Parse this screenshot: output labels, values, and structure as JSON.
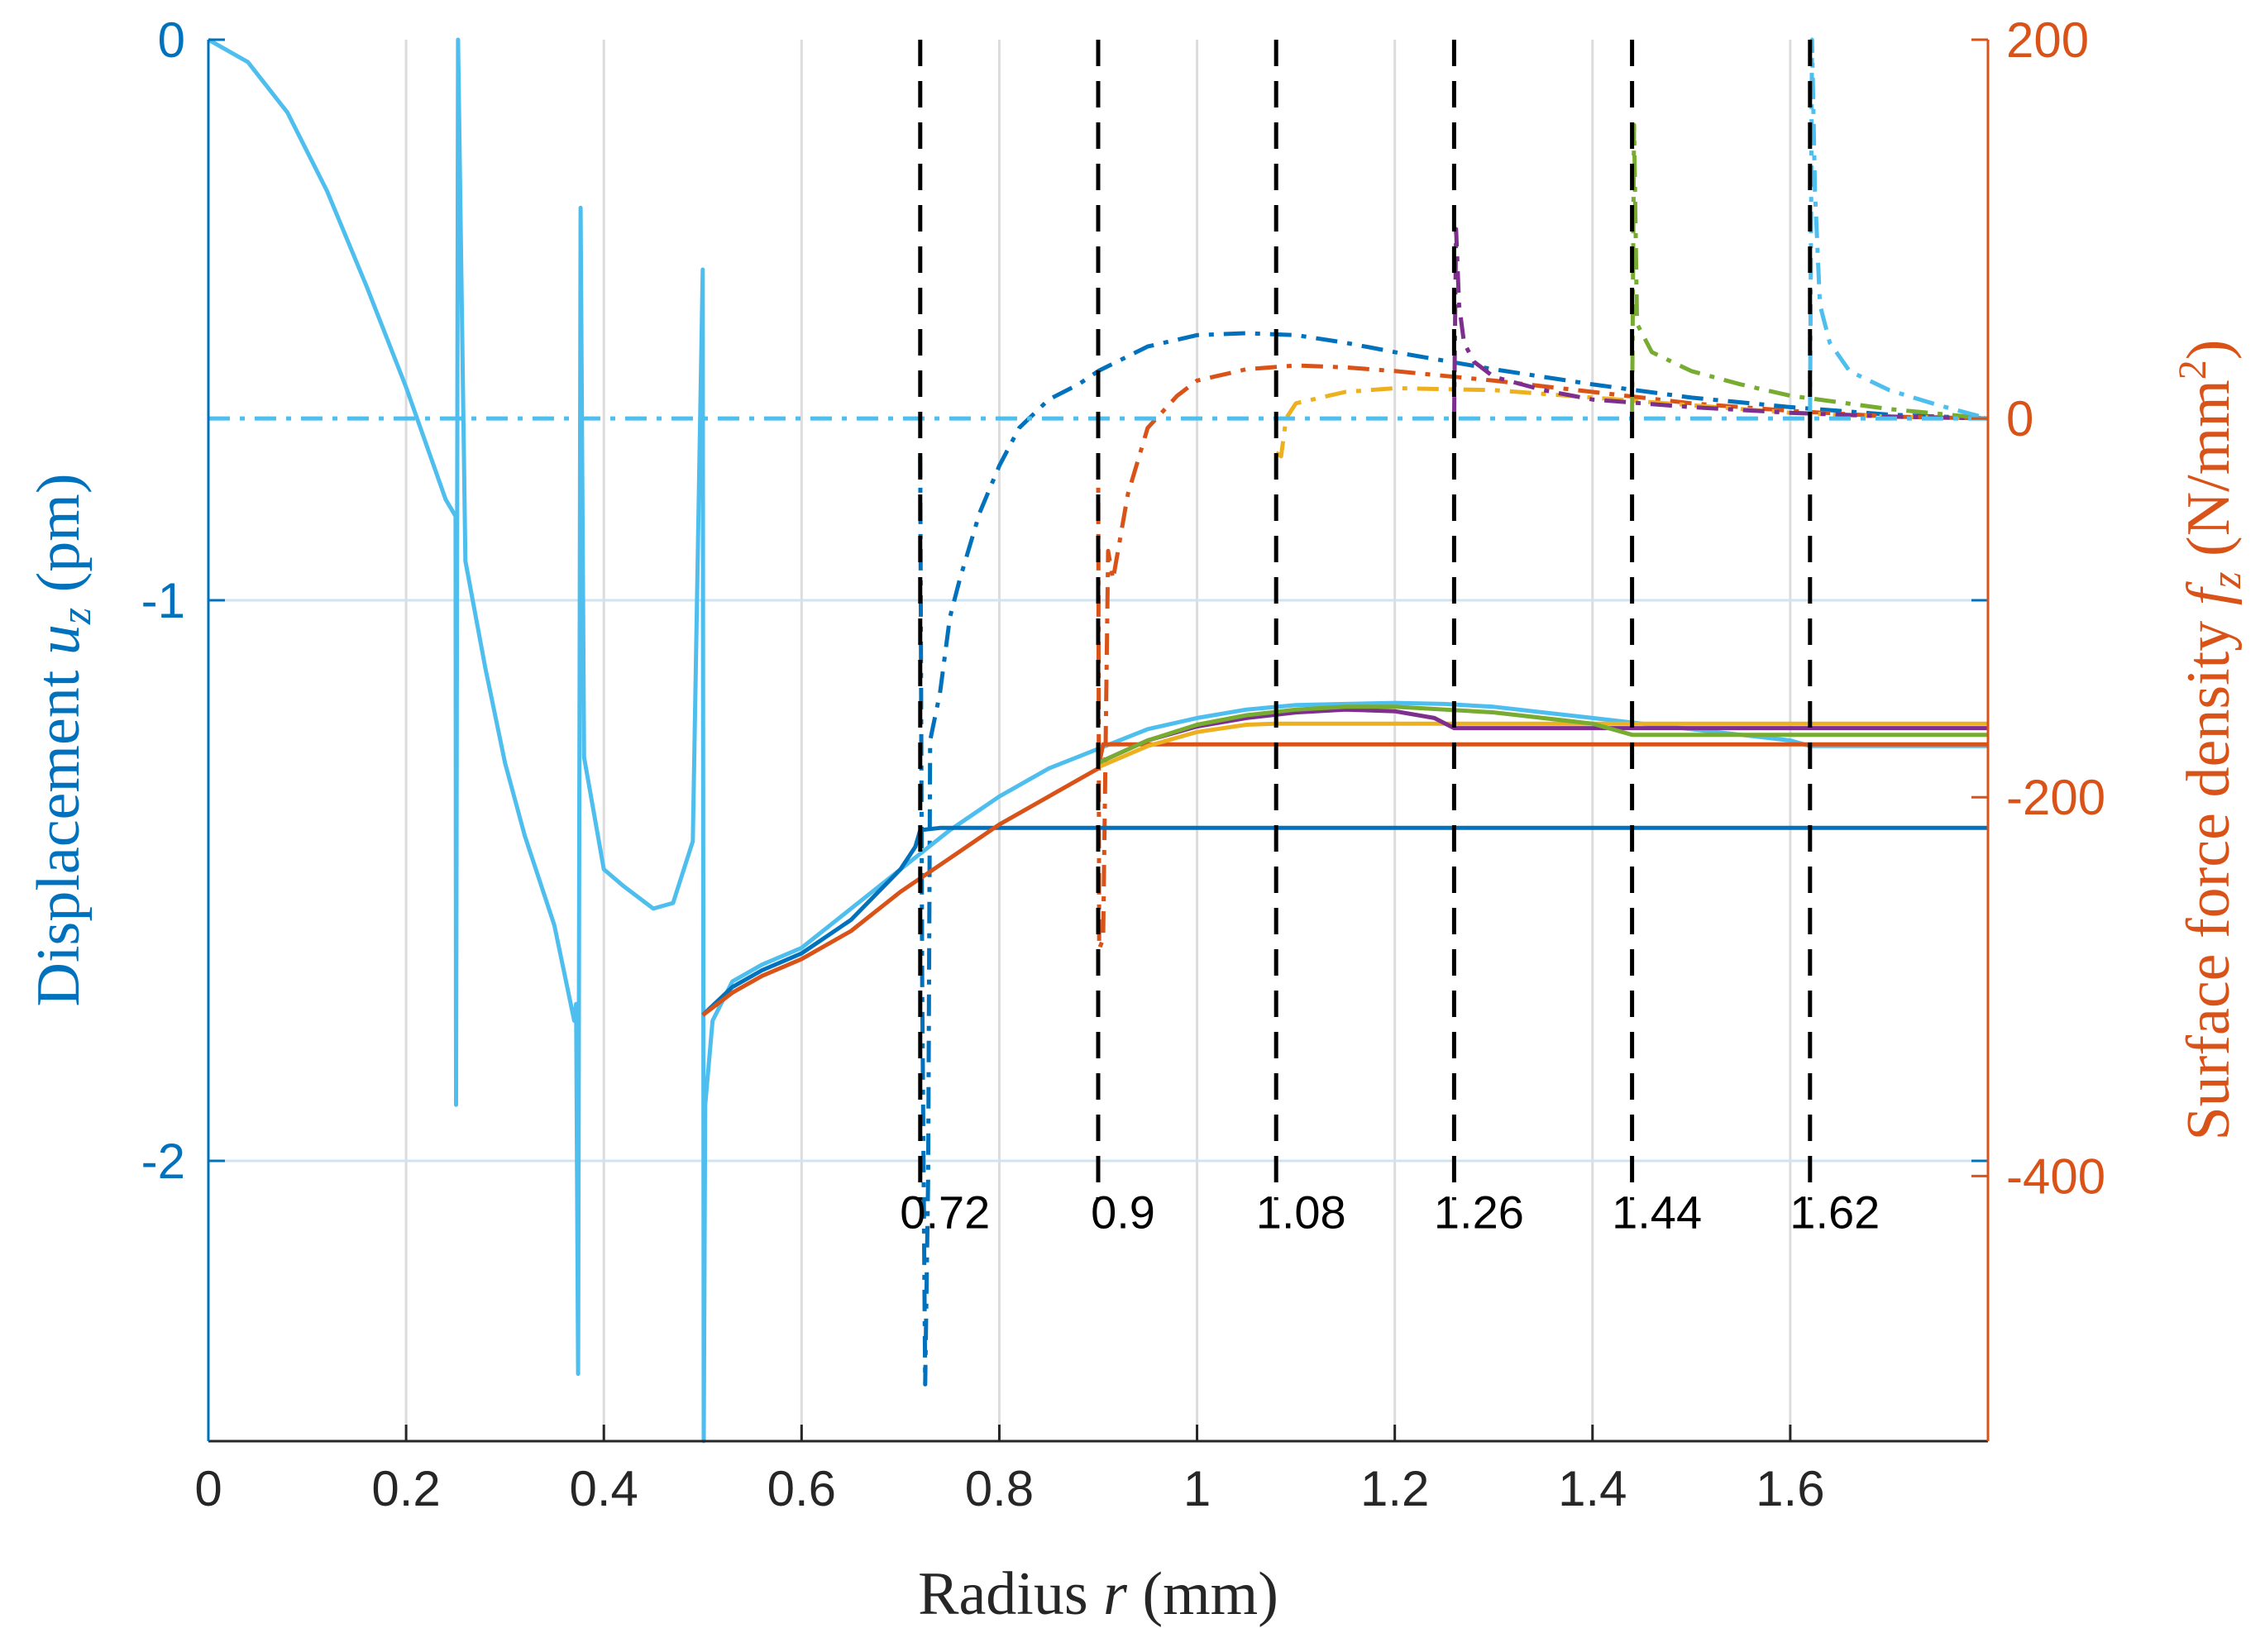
{
  "chart_data": {
    "type": "line",
    "xlabel": {
      "pre": "Radius ",
      "var": "r",
      "post": " (mm)"
    },
    "ylabel_left": {
      "pre": "Displacement ",
      "var": "u",
      "sub": "z",
      "post": " (pm)"
    },
    "ylabel_right": {
      "pre": "Surface force density ",
      "var": "f",
      "sub": "z",
      "post": " (N/mm",
      "sup": "2",
      "post2": ")"
    },
    "xlim": [
      0,
      1.8
    ],
    "ylim_left": [
      -2.5,
      0
    ],
    "ylim_right": [
      -540,
      200
    ],
    "xticks": [
      "0",
      "0.2",
      "0.4",
      "0.6",
      "0.8",
      "1",
      "1.2",
      "1.4",
      "1.6"
    ],
    "yticks_left": [
      "0",
      "-1",
      "-2"
    ],
    "yticks_right": [
      "200",
      "0",
      "-200",
      "-400"
    ],
    "grid": true,
    "colors": {
      "left_axis": "#0072BD",
      "right_axis": "#D95319",
      "light_blue": "#4DBEEE",
      "orange": "#D95319",
      "yellow": "#EDB120",
      "purple": "#7E2F8E",
      "green": "#77AC30"
    },
    "annotations": [
      "0.72",
      "0.9",
      "1.08",
      "1.26",
      "1.44",
      "1.62"
    ],
    "annotation_x": [
      0.72,
      0.9,
      1.08,
      1.26,
      1.44,
      1.62
    ],
    "series": [
      {
        "color": "#4DBEEE",
        "style": "solid",
        "axis": "left",
        "x": [
          0,
          0.04,
          0.08,
          0.12,
          0.16,
          0.2,
          0.24,
          0.25,
          0.2505,
          0.2525,
          0.26,
          0.28,
          0.3,
          0.32,
          0.35,
          0.37,
          0.372,
          0.374,
          0.3765,
          0.38,
          0.4,
          0.42,
          0.45,
          0.47,
          0.49,
          0.5,
          0.501,
          0.5025,
          0.51,
          0.53,
          0.56,
          0.6,
          0.65,
          0.7,
          0.75,
          0.8,
          0.85,
          0.9,
          0.95,
          1.0,
          1.05,
          1.1,
          1.15,
          1.2,
          1.25,
          1.3,
          1.35,
          1.4,
          1.45,
          1.5,
          1.55,
          1.6,
          1.62,
          1.7,
          1.8
        ],
        "y": [
          0,
          -0.04,
          -0.13,
          -0.27,
          -0.44,
          -0.62,
          -0.82,
          -0.85,
          -1.9,
          0,
          -0.93,
          -1.12,
          -1.29,
          -1.42,
          -1.58,
          -1.75,
          -1.72,
          -2.38,
          -0.3,
          -1.28,
          -1.48,
          -1.51,
          -1.55,
          -1.54,
          -1.43,
          -0.41,
          -2.5,
          -1.9,
          -1.75,
          -1.68,
          -1.65,
          -1.62,
          -1.55,
          -1.48,
          -1.41,
          -1.35,
          -1.3,
          -1.265,
          -1.23,
          -1.21,
          -1.195,
          -1.187,
          -1.185,
          -1.183,
          -1.185,
          -1.19,
          -1.2,
          -1.21,
          -1.22,
          -1.23,
          -1.24,
          -1.25,
          -1.26,
          -1.26,
          -1.26
        ]
      },
      {
        "color": "#0072BD",
        "style": "solid",
        "axis": "left",
        "x": [
          0.5,
          0.53,
          0.56,
          0.6,
          0.65,
          0.7,
          0.715,
          0.72,
          0.74,
          1.0,
          1.5,
          1.8
        ],
        "y": [
          -1.74,
          -1.69,
          -1.66,
          -1.63,
          -1.57,
          -1.48,
          -1.44,
          -1.41,
          -1.406,
          -1.406,
          -1.406,
          -1.406
        ]
      },
      {
        "color": "#D95319",
        "style": "solid",
        "axis": "left",
        "x": [
          0.5,
          0.53,
          0.56,
          0.6,
          0.65,
          0.7,
          0.75,
          0.8,
          0.85,
          0.9,
          0.905,
          1.2,
          1.5,
          1.8
        ],
        "y": [
          -1.74,
          -1.7,
          -1.67,
          -1.64,
          -1.59,
          -1.52,
          -1.46,
          -1.4,
          -1.35,
          -1.3,
          -1.257,
          -1.257,
          -1.257,
          -1.257
        ]
      },
      {
        "color": "#EDB120",
        "style": "solid",
        "axis": "left",
        "x": [
          0.9,
          0.95,
          1.0,
          1.05,
          1.08,
          1.2,
          1.5,
          1.8
        ],
        "y": [
          -1.298,
          -1.26,
          -1.235,
          -1.222,
          -1.22,
          -1.22,
          -1.22,
          -1.22
        ]
      },
      {
        "color": "#7E2F8E",
        "style": "solid",
        "axis": "left",
        "x": [
          0.9,
          0.95,
          1.0,
          1.05,
          1.1,
          1.15,
          1.2,
          1.24,
          1.26,
          1.5,
          1.8
        ],
        "y": [
          -1.29,
          -1.25,
          -1.225,
          -1.21,
          -1.2,
          -1.195,
          -1.198,
          -1.21,
          -1.228,
          -1.228,
          -1.228
        ]
      },
      {
        "color": "#77AC30",
        "style": "solid",
        "axis": "left",
        "x": [
          0.9,
          0.95,
          1.0,
          1.05,
          1.1,
          1.15,
          1.2,
          1.3,
          1.4,
          1.44,
          1.6,
          1.8
        ],
        "y": [
          -1.29,
          -1.25,
          -1.222,
          -1.205,
          -1.195,
          -1.19,
          -1.19,
          -1.2,
          -1.22,
          -1.24,
          -1.24,
          -1.24
        ]
      },
      {
        "color": "#0072BD",
        "style": "dashdot",
        "axis": "right",
        "x": [
          0.72,
          0.722,
          0.725,
          0.728,
          0.73,
          0.74,
          0.75,
          0.76,
          0.78,
          0.8,
          0.82,
          0.85,
          0.88,
          0.9,
          0.95,
          1.0,
          1.05,
          1.1,
          1.15,
          1.2,
          1.3,
          1.4,
          1.5,
          1.6,
          1.7,
          1.8
        ],
        "y": [
          -20,
          -300,
          -510,
          -400,
          -170,
          -145,
          -105,
          -85,
          -50,
          -25,
          -5,
          10,
          18,
          25,
          38,
          44,
          45,
          44,
          40,
          35,
          26,
          18,
          11,
          6,
          2,
          0
        ]
      },
      {
        "color": "#D95319",
        "style": "dashdot",
        "axis": "right",
        "x": [
          0.9,
          0.901,
          0.905,
          0.91,
          0.915,
          0.93,
          0.95,
          0.98,
          1.0,
          1.05,
          1.1,
          1.15,
          1.2,
          1.3,
          1.4,
          1.5,
          1.6,
          1.7,
          1.8
        ],
        "y": [
          -20,
          -280,
          -275,
          -70,
          -85,
          -40,
          -5,
          12,
          20,
          26,
          28,
          27,
          25,
          20,
          14,
          8,
          4,
          1,
          0
        ]
      },
      {
        "color": "#EDB120",
        "style": "dashdot",
        "axis": "right",
        "x": [
          1.08,
          1.085,
          1.09,
          1.1,
          1.15,
          1.2,
          1.3,
          1.4,
          1.5,
          1.6,
          1.7,
          1.8
        ],
        "y": [
          -18,
          -20,
          0,
          8,
          14,
          16,
          15,
          11,
          7,
          3,
          1,
          0
        ]
      },
      {
        "color": "#7E2F8E",
        "style": "dashdot",
        "axis": "right",
        "x": [
          1.26,
          1.262,
          1.265,
          1.27,
          1.28,
          1.3,
          1.35,
          1.4,
          1.5,
          1.6,
          1.7,
          1.8
        ],
        "y": [
          0,
          100,
          60,
          40,
          30,
          22,
          15,
          10,
          6,
          3,
          1,
          0
        ]
      },
      {
        "color": "#77AC30",
        "style": "dashdot",
        "axis": "right",
        "x": [
          1.44,
          1.442,
          1.445,
          1.45,
          1.46,
          1.5,
          1.55,
          1.6,
          1.7,
          1.8
        ],
        "y": [
          0,
          155,
          50,
          45,
          35,
          25,
          18,
          12,
          5,
          0
        ]
      },
      {
        "color": "#4DBEEE",
        "style": "dashdot",
        "axis": "right",
        "x": [
          1.62,
          1.622,
          1.625,
          1.63,
          1.64,
          1.66,
          1.7,
          1.75,
          1.8
        ],
        "y": [
          0,
          200,
          120,
          60,
          40,
          25,
          15,
          7,
          0
        ]
      },
      {
        "color": "#4DBEEE",
        "style": "dashdot",
        "axis": "right",
        "x": [
          0,
          1.8
        ],
        "y": [
          0,
          0
        ]
      }
    ]
  }
}
